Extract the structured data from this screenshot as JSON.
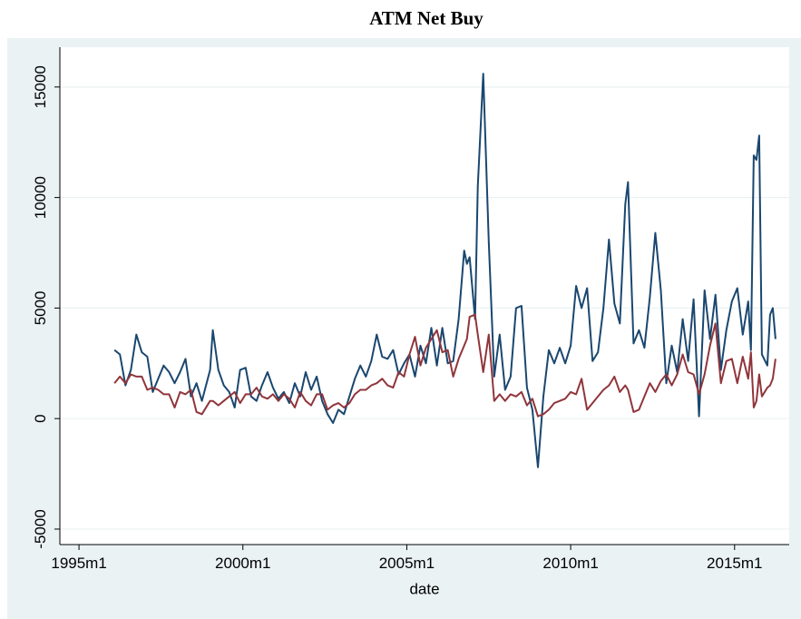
{
  "chart_data": {
    "type": "line",
    "title": "ATM Net Buy",
    "xlabel": "date",
    "x": [
      "1996m2",
      "1996m4",
      "1996m6",
      "1996m8",
      "1996m10",
      "1996m12",
      "1997m2",
      "1997m4",
      "1997m6",
      "1997m8",
      "1997m10",
      "1997m12",
      "1998m2",
      "1998m4",
      "1998m6",
      "1998m8",
      "1998m10",
      "1999m1",
      "1999m2",
      "1999m4",
      "1999m6",
      "1999m8",
      "1999m10",
      "1999m12",
      "2000m2",
      "2000m4",
      "2000m6",
      "2000m8",
      "2000m10",
      "2000m12",
      "2001m2",
      "2001m4",
      "2001m6",
      "2001m8",
      "2001m10",
      "2001m12",
      "2002m2",
      "2002m4",
      "2002m6",
      "2002m8",
      "2002m10",
      "2002m12",
      "2003m2",
      "2003m4",
      "2003m6",
      "2003m8",
      "2003m10",
      "2003m12",
      "2004m2",
      "2004m4",
      "2004m6",
      "2004m8",
      "2004m10",
      "2004m12",
      "2005m2",
      "2005m4",
      "2005m6",
      "2005m8",
      "2005m10",
      "2005m12",
      "2006m2",
      "2006m4",
      "2006m6",
      "2006m8",
      "2006m10",
      "2006m11",
      "2006m12",
      "2007m2",
      "2007m3",
      "2007m5",
      "2007m7",
      "2007m9",
      "2007m11",
      "2008m1",
      "2008m3",
      "2008m5",
      "2008m7",
      "2008m9",
      "2008m11",
      "2009m1",
      "2009m3",
      "2009m5",
      "2009m7",
      "2009m9",
      "2009m11",
      "2010m1",
      "2010m3",
      "2010m5",
      "2010m7",
      "2010m9",
      "2010m11",
      "2011m1",
      "2011m3",
      "2011m5",
      "2011m7",
      "2011m9",
      "2011m10",
      "2011m12",
      "2012m2",
      "2012m4",
      "2012m6",
      "2012m8",
      "2012m10",
      "2012m12",
      "2013m2",
      "2013m4",
      "2013m6",
      "2013m8",
      "2013m10",
      "2013m12",
      "2014m2",
      "2014m4",
      "2014m6",
      "2014m8",
      "2014m10",
      "2014m12",
      "2015m2",
      "2015m4",
      "2015m6",
      "2015m7",
      "2015m8",
      "2015m9",
      "2015m10",
      "2015m11",
      "2016m1",
      "2016m2",
      "2016m3",
      "2016m4"
    ],
    "series": [
      {
        "color": "#1a476f",
        "values": [
          3100,
          2900,
          1500,
          2200,
          3800,
          3000,
          2800,
          1200,
          1800,
          2400,
          2100,
          1600,
          2100,
          2700,
          1000,
          1600,
          800,
          2200,
          4000,
          2200,
          1500,
          1200,
          500,
          2200,
          2300,
          1000,
          800,
          1500,
          2100,
          1400,
          900,
          1200,
          700,
          1600,
          1000,
          2100,
          1300,
          1900,
          800,
          200,
          -200,
          400,
          200,
          1000,
          1800,
          2400,
          1900,
          2600,
          3800,
          2800,
          2700,
          3100,
          2000,
          2500,
          2900,
          1900,
          3300,
          2500,
          4100,
          2400,
          4100,
          2500,
          2600,
          4500,
          7600,
          7000,
          7300,
          4500,
          10500,
          15600,
          8000,
          1900,
          3800,
          1300,
          1900,
          5000,
          5100,
          1400,
          400,
          -2200,
          1000,
          3100,
          2500,
          3200,
          2500,
          3300,
          6000,
          5000,
          5900,
          2600,
          3000,
          5000,
          8100,
          5200,
          4300,
          9700,
          10700,
          3400,
          4000,
          3200,
          5500,
          8400,
          5800,
          1600,
          3300,
          2100,
          4500,
          2600,
          5400,
          100,
          5800,
          3600,
          5600,
          2200,
          4000,
          5300,
          5900,
          3800,
          5300,
          3100,
          11900,
          11700,
          12800,
          2900,
          2400,
          4700,
          5000,
          3600
        ]
      },
      {
        "color": "#90353b",
        "values": [
          1600,
          1900,
          1600,
          2000,
          1900,
          1900,
          1300,
          1400,
          1300,
          1100,
          1100,
          500,
          1200,
          1100,
          1300,
          300,
          200,
          800,
          800,
          600,
          800,
          1000,
          1200,
          700,
          1100,
          1100,
          1400,
          1000,
          900,
          1100,
          800,
          1100,
          900,
          500,
          1200,
          800,
          600,
          1100,
          1100,
          400,
          600,
          700,
          500,
          700,
          1100,
          1300,
          1300,
          1500,
          1600,
          1800,
          1500,
          1400,
          2100,
          1900,
          2900,
          3700,
          2400,
          3200,
          3600,
          4000,
          3000,
          3100,
          1900,
          2700,
          3300,
          3600,
          4600,
          4700,
          3800,
          2100,
          3800,
          800,
          1100,
          800,
          1100,
          1000,
          1200,
          600,
          900,
          100,
          200,
          400,
          700,
          800,
          900,
          1200,
          1100,
          1800,
          400,
          700,
          1000,
          1300,
          1500,
          1900,
          1200,
          1500,
          1300,
          300,
          400,
          1000,
          1600,
          1200,
          1700,
          2000,
          1500,
          2000,
          2900,
          2100,
          2000,
          1100,
          2000,
          3300,
          4300,
          1600,
          2600,
          2700,
          1600,
          2800,
          1800,
          3000,
          500,
          800,
          2000,
          1000,
          1400,
          1500,
          1800,
          2700
        ]
      }
    ],
    "xlim": [
      "1994m6",
      "2016m9"
    ],
    "xticks": [
      "1995m1",
      "2000m1",
      "2005m1",
      "2010m1",
      "2015m1"
    ],
    "ylim": [
      -5700,
      16800
    ],
    "yticks": [
      -5000,
      0,
      5000,
      10000,
      15000
    ],
    "grid": true
  }
}
